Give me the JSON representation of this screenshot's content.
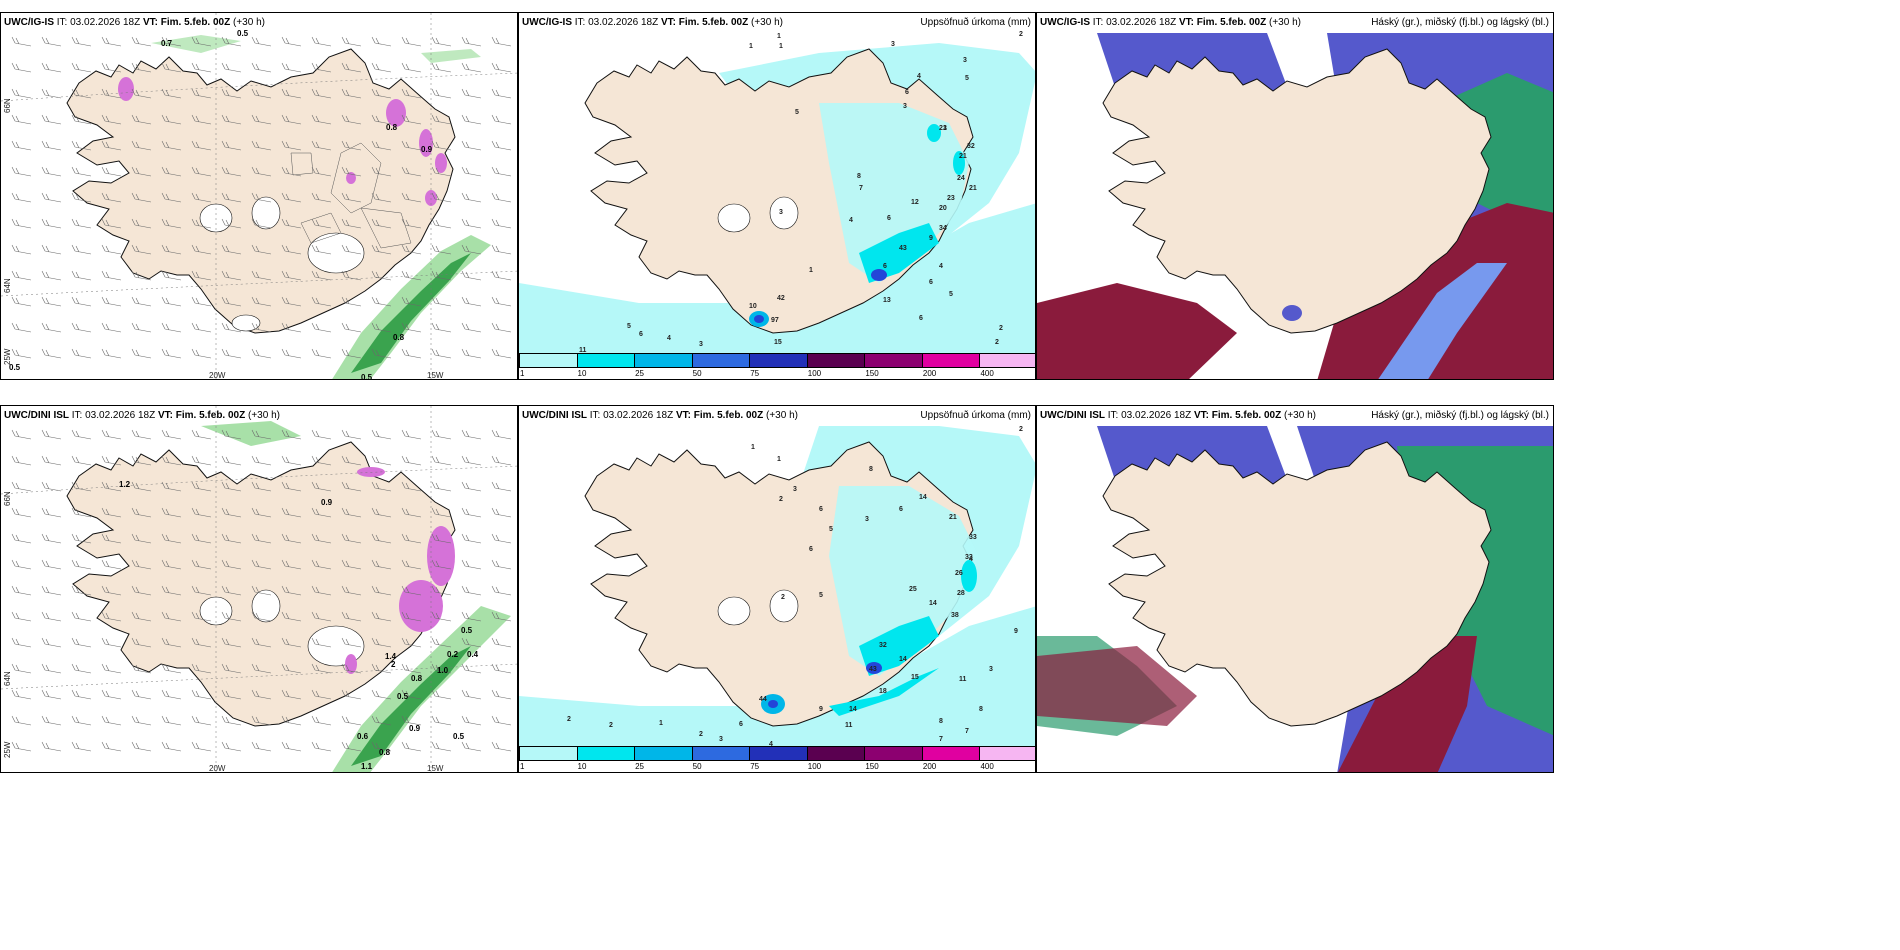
{
  "colors": {
    "land": "#f5e6d6",
    "coast": "#111111",
    "precip_light": "#b5f8f8",
    "precip_mid": "#00e6ee",
    "precip_dark": "#0090d0",
    "precip_blue": "#2345d8",
    "snow_green": "#1e8a3c",
    "snow_pink": "#d572d8",
    "cloud_high": "#5559cc",
    "cloud_mid": "#2b9b6e",
    "cloud_low": "#8a1b3c"
  },
  "rows": [
    {
      "model": "UWC/IG-IS",
      "it": "IT: 03.02.2026 18Z",
      "vt": "VT: Fim. 5.feb. 00Z",
      "offset": "(+30 h)"
    },
    {
      "model": "UWC/DINI ISL",
      "it": "IT: 03.02.2026 18Z",
      "vt": "VT: Fim. 5.feb. 00Z",
      "offset": "(+30 h)"
    }
  ],
  "panel_titles": {
    "precip": "Uppsöfnuð úrkoma (mm)",
    "clouds": "Háský (gr.), miðský (fj.bl.) og lágský (bl.)"
  },
  "axis_labels": {
    "lon_20": "20W",
    "lon_15": "15W",
    "lat_66": "66N",
    "lat_64": "64N",
    "lon_25": "25W"
  },
  "colorbar": {
    "ticks": [
      "1",
      "10",
      "25",
      "50",
      "75",
      "100",
      "150",
      "200",
      "400"
    ],
    "colors": [
      "#b5f8f8",
      "#00e6ee",
      "#00b6e8",
      "#2d6ae0",
      "#2230b8",
      "#5a0050",
      "#8c0070",
      "#e000a0",
      "#f6b6f2"
    ]
  },
  "precip_values_top": [
    "2",
    "1",
    "1",
    "1",
    "3",
    "3",
    "5",
    "4",
    "6",
    "3",
    "3",
    "21",
    "32",
    "21",
    "24",
    "21",
    "23",
    "20",
    "34",
    "12",
    "6",
    "43",
    "9",
    "4",
    "6",
    "5",
    "13",
    "6",
    "2",
    "2",
    "5",
    "6",
    "4",
    "3",
    "10",
    "97",
    "15",
    "42",
    "11",
    "9",
    "1",
    "3",
    "5",
    "8",
    "4",
    "7",
    "6"
  ],
  "precip_values_bottom": [
    "2",
    "1",
    "1",
    "2",
    "3",
    "6",
    "5",
    "8",
    "3",
    "6",
    "14",
    "21",
    "33",
    "33",
    "26",
    "28",
    "38",
    "14",
    "25",
    "32",
    "14",
    "18",
    "15",
    "11",
    "14",
    "44",
    "43",
    "9",
    "8",
    "4",
    "5",
    "6",
    "7",
    "3",
    "2",
    "2",
    "2",
    "1",
    "9",
    "11",
    "8",
    "7",
    "2",
    "3",
    "4",
    "6"
  ],
  "snow_values_top": [
    "0.5",
    "0.7",
    "0.8",
    "0.9",
    "0.5",
    "0.8",
    "0.3",
    "0.5"
  ],
  "snow_values_bottom": [
    "1.2",
    "0.9",
    "0.5",
    "1.0",
    "0.8",
    "0.5",
    "0.6",
    "0.9",
    "0.8",
    "0.5",
    "0.9",
    "1.1",
    "1.4",
    "2",
    "0.2",
    "0.4"
  ]
}
